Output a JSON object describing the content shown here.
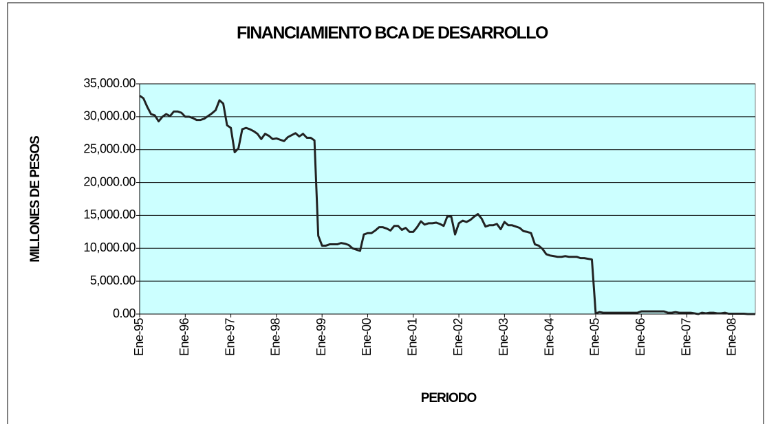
{
  "chart_data": {
    "type": "line",
    "title": "FINANCIAMIENTO BCA DE DESARROLLO",
    "x_label": "PERIODO",
    "y_label": "MILLONES DE PESOS",
    "categories": [
      "Ene-95",
      null,
      null,
      null,
      null,
      null,
      null,
      null,
      null,
      null,
      null,
      null,
      "Ene-96",
      null,
      null,
      null,
      null,
      null,
      null,
      null,
      null,
      null,
      null,
      null,
      "Ene-97",
      null,
      null,
      null,
      null,
      null,
      null,
      null,
      null,
      null,
      null,
      null,
      "Ene-98",
      null,
      null,
      null,
      null,
      null,
      null,
      null,
      null,
      null,
      null,
      null,
      "Ene-99",
      null,
      null,
      null,
      null,
      null,
      null,
      null,
      null,
      null,
      null,
      null,
      "Ene-00",
      null,
      null,
      null,
      null,
      null,
      null,
      null,
      null,
      null,
      null,
      null,
      "Ene-01",
      null,
      null,
      null,
      null,
      null,
      null,
      null,
      null,
      null,
      null,
      null,
      "Ene-02",
      null,
      null,
      null,
      null,
      null,
      null,
      null,
      null,
      null,
      null,
      null,
      "Ene-03",
      null,
      null,
      null,
      null,
      null,
      null,
      null,
      null,
      null,
      null,
      null,
      "Ene-04",
      null,
      null,
      null,
      null,
      null,
      null,
      null,
      null,
      null,
      null,
      null,
      "Ene-05",
      null,
      null,
      null,
      null,
      null,
      null,
      null,
      null,
      null,
      null,
      null,
      "Ene-06",
      null,
      null,
      null,
      null,
      null,
      null,
      null,
      null,
      null,
      null,
      null,
      "Ene-07",
      null,
      null,
      null,
      null,
      null,
      null,
      null,
      null,
      null,
      null,
      null,
      "Ene-08",
      null,
      null,
      null,
      null,
      null,
      null
    ],
    "series": [
      {
        "color": "#222222",
        "values": [
          33200,
          32800,
          31500,
          30400,
          30200,
          29300,
          30000,
          30400,
          30100,
          30800,
          30800,
          30600,
          30000,
          30000,
          29800,
          29500,
          29500,
          29700,
          30100,
          30500,
          31000,
          32500,
          32000,
          28700,
          28300,
          24600,
          25200,
          28100,
          28300,
          28100,
          27800,
          27400,
          26600,
          27400,
          27100,
          26600,
          26700,
          26500,
          26300,
          26900,
          27200,
          27500,
          27000,
          27400,
          26800,
          26800,
          26400,
          11900,
          10400,
          10400,
          10600,
          10600,
          10600,
          10800,
          10700,
          10500,
          10000,
          9800,
          9600,
          12100,
          12300,
          12300,
          12700,
          13200,
          13200,
          13000,
          12700,
          13400,
          13400,
          12800,
          13100,
          12500,
          12500,
          13200,
          14100,
          13600,
          13800,
          13800,
          13900,
          13700,
          13400,
          14900,
          14800,
          12100,
          13800,
          14200,
          14000,
          14300,
          14800,
          15200,
          14500,
          13300,
          13500,
          13500,
          13700,
          12900,
          14000,
          13500,
          13500,
          13300,
          13100,
          12600,
          12500,
          12300,
          10600,
          10400,
          9900,
          9100,
          8900,
          8800,
          8700,
          8700,
          8800,
          8700,
          8700,
          8700,
          8500,
          8500,
          8400,
          8300,
          100,
          300,
          200,
          200,
          200,
          200,
          200,
          200,
          200,
          200,
          200,
          200,
          400,
          400,
          400,
          400,
          400,
          400,
          400,
          200,
          200,
          300,
          200,
          200,
          200,
          200,
          100,
          0,
          200,
          100,
          200,
          200,
          100,
          100,
          200,
          50,
          50,
          50,
          50,
          50,
          0,
          0,
          0
        ]
      }
    ],
    "ylim": [
      0,
      35000
    ],
    "yticks": [
      {
        "value": 0,
        "label": "0.00"
      },
      {
        "value": 5000,
        "label": "5,000.00"
      },
      {
        "value": 10000,
        "label": "10,000.00"
      },
      {
        "value": 15000,
        "label": "15,000.00"
      },
      {
        "value": 20000,
        "label": "20,000.00"
      },
      {
        "value": 25000,
        "label": "25,000.00"
      },
      {
        "value": 30000,
        "label": "30,000.00"
      },
      {
        "value": 35000,
        "label": "35,000.00"
      }
    ],
    "grid": true,
    "background": "#ccffff"
  }
}
